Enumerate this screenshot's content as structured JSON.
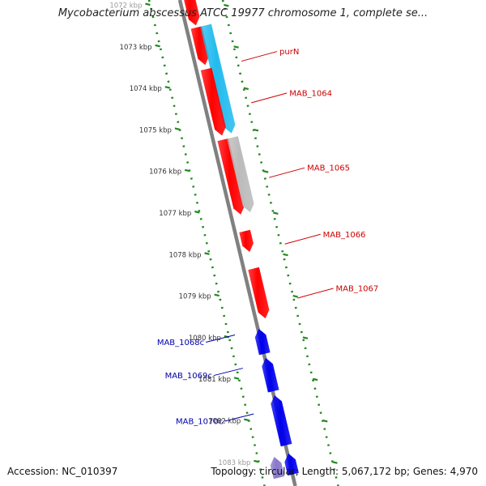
{
  "title": "Mycobacterium abscessus ATCC 19977 chromosome 1, complete se...",
  "footer": {
    "accession": "Accession: NC_010397",
    "summary": "Topology: circular; Length: 5,067,172 bp; Genes: 4,970"
  },
  "colors": {
    "forward_gene": "#ff0000",
    "reverse_gene": "#0000ee",
    "cds_cyan": "#22bbee",
    "cds_grey": "#bbbbbb",
    "cds_purple": "#8877cc",
    "backbone": "#808080",
    "ruler": "#228822",
    "label_forward": "#cc0000",
    "label_reverse": "#0000aa"
  },
  "ruler_ticks": [
    "1072 kbp",
    "1073 kbp",
    "1074 kbp",
    "1075 kbp",
    "1076 kbp",
    "1077 kbp",
    "1078 kbp",
    "1079 kbp",
    "1080 kbp",
    "1081 kbp",
    "1082 kbp",
    "1083 kbp"
  ],
  "features": [
    {
      "strand": "forward",
      "type": "gene",
      "start_kbp": 1071.6,
      "end_kbp": 1072.55
    },
    {
      "strand": "forward",
      "type": "gene",
      "start_kbp": 1072.6,
      "end_kbp": 1073.5
    },
    {
      "strand": "forward",
      "type": "cds",
      "style": "cyan",
      "start_kbp": 1072.6,
      "end_kbp": 1075.2
    },
    {
      "strand": "forward",
      "type": "gene",
      "start_kbp": 1073.6,
      "end_kbp": 1075.2
    },
    {
      "strand": "forward",
      "type": "gene",
      "start_kbp": 1075.3,
      "end_kbp": 1077.1
    },
    {
      "strand": "forward",
      "type": "cds",
      "style": "grey",
      "start_kbp": 1075.3,
      "end_kbp": 1077.1
    },
    {
      "strand": "forward",
      "type": "gene",
      "start_kbp": 1077.5,
      "end_kbp": 1078.0
    },
    {
      "strand": "forward",
      "type": "gene",
      "start_kbp": 1078.4,
      "end_kbp": 1079.6
    },
    {
      "strand": "reverse",
      "type": "gene",
      "start_kbp": 1079.8,
      "end_kbp": 1080.4
    },
    {
      "strand": "reverse",
      "type": "gene",
      "start_kbp": 1080.5,
      "end_kbp": 1081.3
    },
    {
      "strand": "reverse",
      "type": "gene",
      "start_kbp": 1081.4,
      "end_kbp": 1082.6
    },
    {
      "strand": "reverse",
      "type": "gene",
      "start_kbp": 1082.8,
      "end_kbp": 1083.3
    },
    {
      "strand": "reverse",
      "type": "cds",
      "style": "purple",
      "start_kbp": 1082.8,
      "end_kbp": 1083.3
    }
  ],
  "gene_labels": [
    {
      "text": "purN",
      "strand": "forward",
      "feature_kbp": 1073.2
    },
    {
      "text": "MAB_1064",
      "strand": "forward",
      "feature_kbp": 1074.2
    },
    {
      "text": "MAB_1065",
      "strand": "forward",
      "feature_kbp": 1076.0
    },
    {
      "text": "MAB_1066",
      "strand": "forward",
      "feature_kbp": 1077.6
    },
    {
      "text": "MAB_1067",
      "strand": "forward",
      "feature_kbp": 1078.9
    },
    {
      "text": "MAB_1068c",
      "strand": "reverse",
      "feature_kbp": 1080.1
    },
    {
      "text": "MAB_1069c",
      "strand": "reverse",
      "feature_kbp": 1080.9
    },
    {
      "text": "MAB_1070c",
      "strand": "reverse",
      "feature_kbp": 1082.0
    }
  ]
}
